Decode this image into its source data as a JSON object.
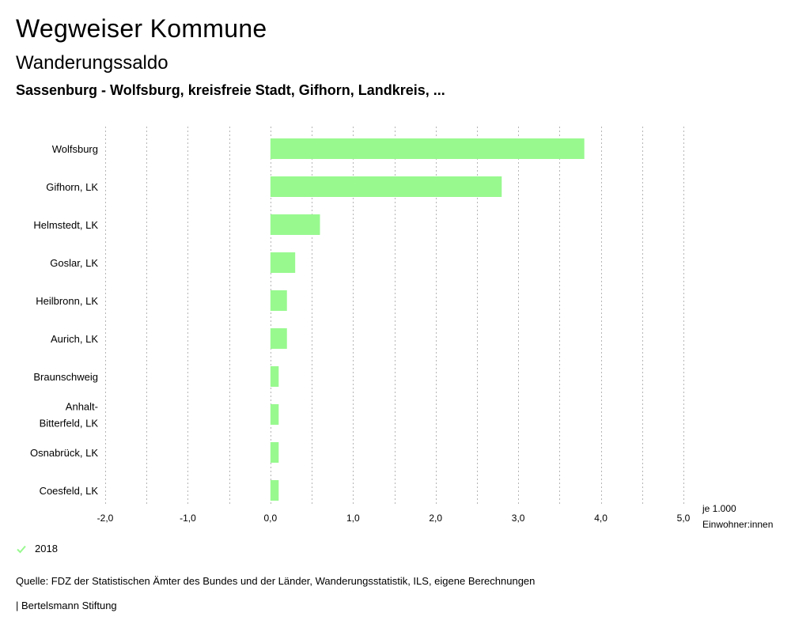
{
  "header": {
    "title": "Wegweiser Kommune",
    "subtitle": "Wanderungssaldo",
    "region": "Sassenburg - Wolfsburg, kreisfreie Stadt, Gifhorn, Landkreis, ..."
  },
  "chart_data": {
    "type": "bar",
    "orientation": "horizontal",
    "categories": [
      "Wolfsburg",
      "Gifhorn, LK",
      "Helmstedt, LK",
      "Goslar, LK",
      "Heilbronn, LK",
      "Aurich, LK",
      "Braunschweig",
      "Anhalt-Bitterfeld, LK",
      "Osnabrück, LK",
      "Coesfeld, LK"
    ],
    "category_lines": [
      [
        "Wolfsburg"
      ],
      [
        "Gifhorn, LK"
      ],
      [
        "Helmstedt, LK"
      ],
      [
        "Goslar, LK"
      ],
      [
        "Heilbronn, LK"
      ],
      [
        "Aurich, LK"
      ],
      [
        "Braunschweig"
      ],
      [
        "Anhalt-",
        "Bitterfeld, LK"
      ],
      [
        "Osnabrück, LK"
      ],
      [
        "Coesfeld, LK"
      ]
    ],
    "series": [
      {
        "name": "2018",
        "color": "#98f98f",
        "values": [
          3.8,
          2.8,
          0.6,
          0.3,
          0.2,
          0.2,
          0.1,
          0.1,
          0.1,
          0.1
        ]
      }
    ],
    "xlim": [
      -2.0,
      5.0
    ],
    "xticks": [
      -2.0,
      -1.0,
      0.0,
      1.0,
      2.0,
      3.0,
      4.0,
      5.0
    ],
    "xtick_labels": [
      "-2,0",
      "-1,0",
      "0,0",
      "1,0",
      "2,0",
      "3,0",
      "4,0",
      "5,0"
    ],
    "unit_label": [
      "je 1.000",
      "Einwohner:innen"
    ],
    "grid": "vertical dotted",
    "legend_position": "bottom-left"
  },
  "legend": {
    "label": "2018"
  },
  "footer": {
    "source": "Quelle: FDZ der Statistischen Ämter des Bundes und der Länder, Wanderungsstatistik, ILS, eigene Berechnungen",
    "brand": "| Bertelsmann Stiftung"
  }
}
